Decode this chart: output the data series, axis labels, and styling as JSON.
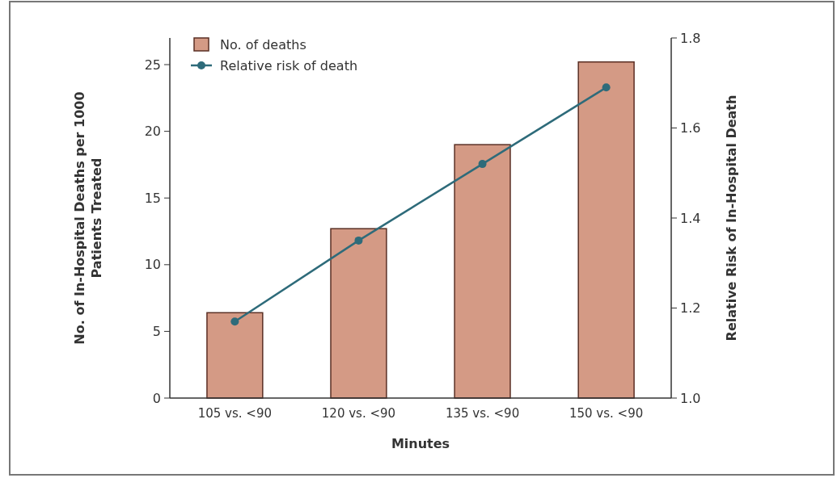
{
  "chart_data": {
    "type": "bar",
    "xlabel": "Minutes",
    "ylabel": "No. of In-Hospital Deaths per 1000 Patients Treated",
    "y2label": "Relative Risk of In-Hospital Death",
    "categories": [
      "105 vs. <90",
      "120 vs. <90",
      "135 vs. <90",
      "150 vs. <90"
    ],
    "series": [
      {
        "name": "No. of deaths",
        "color": "#d49a85",
        "values": [
          6.4,
          12.7,
          19.0,
          25.2
        ]
      },
      {
        "name": "Relative risk of death",
        "type": "line",
        "axis": "y2",
        "color": "#2e6b7a",
        "values": [
          1.17,
          1.35,
          1.52,
          1.69
        ]
      }
    ],
    "ylim": [
      0,
      27
    ],
    "yticks": [
      0,
      5,
      10,
      15,
      20,
      25
    ],
    "y2lim": [
      1.0,
      1.8
    ],
    "y2ticks": [
      {
        "value": 1.0,
        "label": "1.0"
      },
      {
        "value": 1.2,
        "label": "1.2"
      },
      {
        "value": 1.4,
        "label": "1.4"
      },
      {
        "value": 1.6,
        "label": "1.6"
      },
      {
        "value": 1.8,
        "label": "1.8"
      }
    ],
    "legend": "top left",
    "marker": "circle",
    "grid": false
  }
}
